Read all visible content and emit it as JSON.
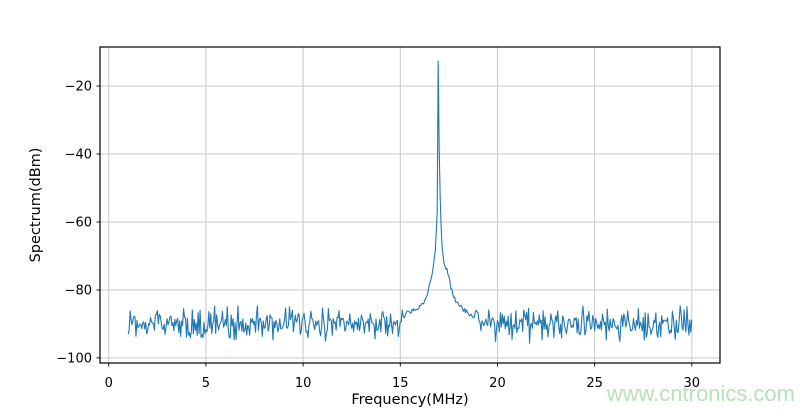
{
  "watermark": "www.cntronics.com",
  "colors": {
    "line": "#1f77b4",
    "grid": "#c9c9c9",
    "spine": "#000000",
    "text": "#000000",
    "watermark": "#b7e1b7",
    "background": "#ffffff"
  },
  "chart_data": {
    "type": "line",
    "title": "",
    "xlabel": "Frequency(MHz)",
    "ylabel": "Spectrum(dBm)",
    "xlim": [
      -0.45,
      31.45
    ],
    "ylim": [
      -101.5,
      -8.5
    ],
    "xticks": [
      0,
      5,
      10,
      15,
      20,
      25,
      30
    ],
    "xtick_labels": [
      "0",
      "5",
      "10",
      "15",
      "20",
      "25",
      "30"
    ],
    "yticks": [
      -20,
      -40,
      -60,
      -80,
      -100
    ],
    "ytick_labels": [
      "−20",
      "−40",
      "−60",
      "−80",
      "−100"
    ],
    "grid": true,
    "legend": false,
    "summary": {
      "noise_floor_dbm": -90,
      "peak_frequency_mhz": 16.95,
      "peak_level_dbm": -13,
      "x_range_mhz": [
        1,
        30
      ]
    },
    "series": [
      {
        "name": "spectrum",
        "color": "#1f77b4",
        "x_start": 1.0,
        "x_end": 30.0,
        "x_step": 0.05,
        "noise": {
          "mean_dbm": -90,
          "sigma_dbm": 2.4,
          "z_clamp": [
            -3.0,
            2.2
          ],
          "seed": 20240601
        },
        "peak_envelope": [
          [
            15.0,
            -89
          ],
          [
            15.4,
            -86.5
          ],
          [
            15.7,
            -86
          ],
          [
            16.0,
            -85
          ],
          [
            16.15,
            -84
          ],
          [
            16.3,
            -83
          ],
          [
            16.45,
            -80
          ],
          [
            16.6,
            -76.5
          ],
          [
            16.72,
            -72
          ],
          [
            16.8,
            -68
          ],
          [
            16.86,
            -62
          ],
          [
            16.9,
            -56.5
          ],
          [
            16.95,
            -13
          ],
          [
            17.0,
            -38
          ],
          [
            17.05,
            -52
          ],
          [
            17.1,
            -61
          ],
          [
            17.15,
            -67
          ],
          [
            17.2,
            -70.5
          ],
          [
            17.3,
            -73
          ],
          [
            17.4,
            -74
          ],
          [
            17.5,
            -76
          ],
          [
            17.6,
            -79
          ],
          [
            17.7,
            -81
          ],
          [
            17.8,
            -82.5
          ],
          [
            17.95,
            -84
          ],
          [
            18.1,
            -85
          ],
          [
            18.4,
            -86.5
          ],
          [
            18.8,
            -88.5
          ]
        ]
      }
    ]
  }
}
